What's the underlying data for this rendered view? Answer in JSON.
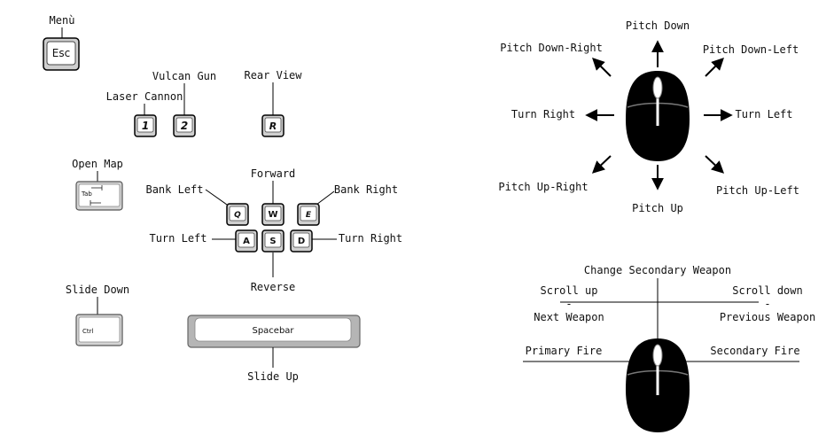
{
  "keyboard": {
    "menu_label": "Menù",
    "esc_key": "Esc",
    "vulcan_gun_label": "Vulcan Gun",
    "laser_cannon_label": "Laser Cannon",
    "key_1": "1",
    "key_2": "2",
    "rear_view_label": "Rear View",
    "key_r": "R",
    "open_map_label": "Open Map",
    "tab_key": "Tab",
    "forward_label": "Forward",
    "bank_left_label": "Bank Left",
    "bank_right_label": "Bank Right",
    "key_q": "Q",
    "key_w": "W",
    "key_e": "E",
    "turn_left_label": "Turn Left",
    "turn_right_label": "Turn Right",
    "key_a": "A",
    "key_s": "S",
    "key_d": "D",
    "reverse_label": "Reverse",
    "slide_down_label": "Slide Down",
    "ctrl_key": "Ctrl",
    "spacebar_key": "Spacebar",
    "slide_up_label": "Slide Up"
  },
  "mouse_movement": {
    "pitch_down": "Pitch Down",
    "pitch_down_right": "Pitch Down-Right",
    "pitch_down_left": "Pitch Down-Left",
    "turn_right": "Turn Right",
    "turn_left": "Turn Left",
    "pitch_up_right": "Pitch Up-Right",
    "pitch_up_left": "Pitch Up-Left",
    "pitch_up": "Pitch Up"
  },
  "mouse_buttons": {
    "change_secondary": "Change Secondary Weapon",
    "scroll_up": "Scroll up",
    "scroll_down": "Scroll down",
    "dash_left": "-",
    "dash_right": "-",
    "next_weapon": "Next Weapon",
    "previous_weapon": "Previous Weapon",
    "primary_fire": "Primary Fire",
    "secondary_fire": "Secondary Fire"
  }
}
